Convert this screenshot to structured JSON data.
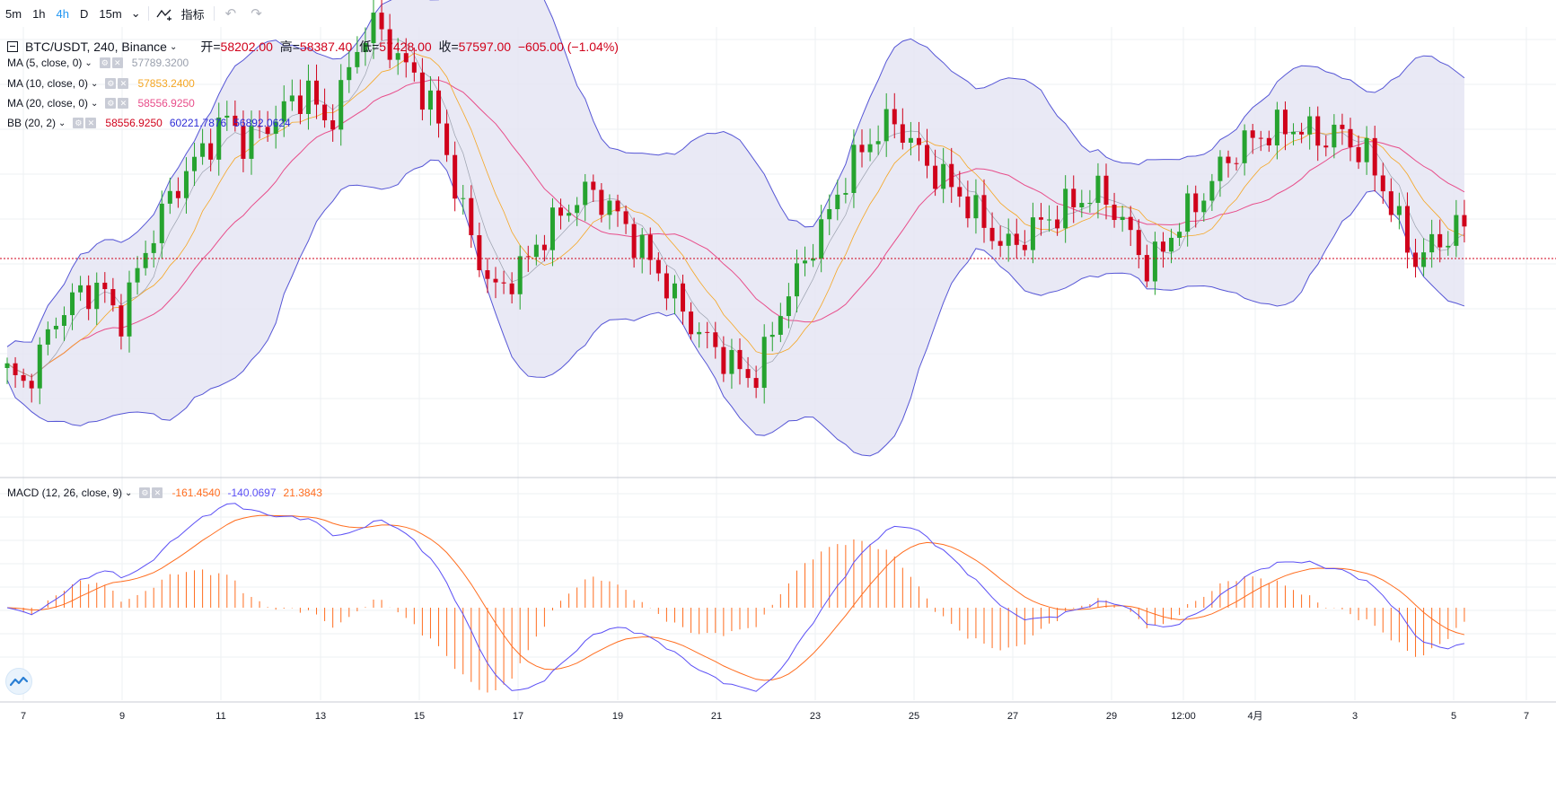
{
  "toolbar": {
    "intervals": [
      "5m",
      "1h",
      "4h",
      "D",
      "15m"
    ],
    "active_interval": "4h",
    "indicators_label": "指标"
  },
  "symbol": {
    "title": "BTC/USDT, 240, Binance",
    "open_label": "开=",
    "open": "58202.00",
    "high_label": "高=",
    "high": "58387.40",
    "low_label": "低=",
    "low": "57428.00",
    "close_label": "收=",
    "close": "57597.00",
    "change": "−605.00 (−1.04%)"
  },
  "indicators": {
    "ma5": {
      "name": "MA (5, close, 0)",
      "value": "57789.3200",
      "color": "#9aa0ad"
    },
    "ma10": {
      "name": "MA (10, close, 0)",
      "value": "57853.2400",
      "color": "#f5a623"
    },
    "ma20": {
      "name": "MA (20, close, 0)",
      "value": "58556.9250",
      "color": "#e84d8a"
    },
    "bb": {
      "name": "BB (20, 2)",
      "basis": "58556.9250",
      "upper": "60221.7876",
      "lower": "56892.0624",
      "basis_color": "#d0021b",
      "upper_color": "#2b2bd6",
      "lower_color": "#2b2bd6"
    },
    "macd": {
      "name": "MACD (12, 26, close, 9)",
      "hist": "-161.4540",
      "macd": "-140.0697",
      "signal": "21.3843",
      "hist_color": "#ff6d1f",
      "macd_color": "#5b4ff5",
      "signal_color": "#ff6d1f"
    }
  },
  "colors": {
    "up": "#26a32f",
    "down": "#d0021b",
    "band": "#5656d6",
    "band_fill": "#e4e4f2",
    "grid": "#eef0f3"
  },
  "chart_data": {
    "type": "candlestick",
    "x_ticks": [
      "7",
      "9",
      "11",
      "13",
      "15",
      "17",
      "19",
      "21",
      "23",
      "25",
      "27",
      "29",
      "12:00",
      "4月",
      "3",
      "5",
      "7"
    ],
    "last_price": 57597.0,
    "price_range": [
      53000,
      62500
    ],
    "close_path": [
      55200,
      54900,
      55500,
      56300,
      56700,
      56900,
      57000,
      56200,
      57100,
      58000,
      58700,
      59300,
      59700,
      60200,
      60600,
      60000,
      60300,
      60600,
      60900,
      61200,
      60400,
      61000,
      62000,
      62600,
      62200,
      61700,
      61300,
      60700,
      59500,
      58300,
      57400,
      56800,
      57300,
      57600,
      58200,
      58500,
      58900,
      59000,
      58700,
      58300,
      57800,
      57400,
      56800,
      56300,
      55900,
      55600,
      55300,
      55000,
      55700,
      56700,
      57300,
      58000,
      58600,
      59400,
      59900,
      60300,
      60500,
      60100,
      59600,
      59300,
      59000,
      58600,
      58200,
      57800,
      58000,
      58300,
      58500,
      58700,
      58900,
      59000,
      58600,
      58000,
      57400,
      57800,
      58400,
      58700,
      59200,
      59700,
      60000,
      60200,
      60300,
      60400,
      60300,
      60100,
      60300,
      60000,
      59700,
      59000,
      58200,
      57500,
      57900,
      58100,
      58300
    ]
  }
}
